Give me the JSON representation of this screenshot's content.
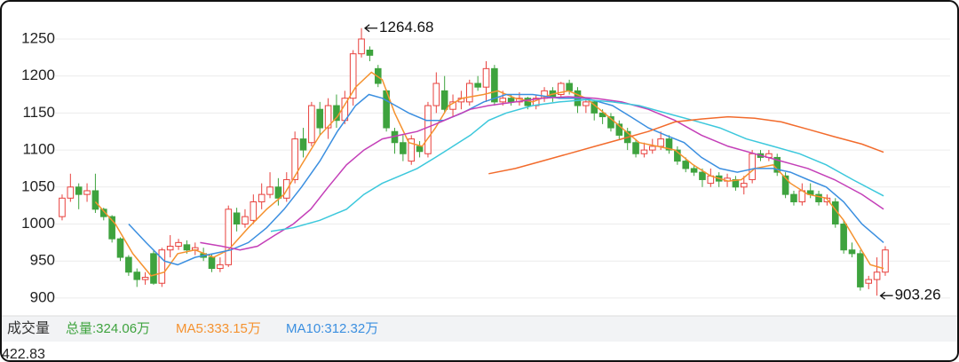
{
  "chart_data": {
    "type": "candlestick",
    "ylim": [
      880,
      1290
    ],
    "yticks": [
      900,
      950,
      1000,
      1050,
      1100,
      1150,
      1200,
      1250
    ],
    "xlim": [
      -0.85,
      106.8
    ],
    "grid": true,
    "up_color": "#e8413d",
    "down_color": "#3ea33e",
    "candles": {
      "open": [
        1010,
        1035,
        1050,
        1040,
        1045,
        1020,
        1010,
        980,
        955,
        935,
        925,
        960,
        920,
        965,
        970,
        972,
        965,
        960,
        955,
        940,
        945,
        1015,
        1000,
        1005,
        1030,
        1040,
        1050,
        1035,
        1060,
        1115,
        1110,
        1155,
        1130,
        1160,
        1140,
        1170,
        1230,
        1235,
        1210,
        1180,
        1125,
        1110,
        1085,
        1105,
        1095,
        1160,
        1180,
        1155,
        1165,
        1165,
        1190,
        1185,
        1210,
        1165,
        1170,
        1165,
        1170,
        1160,
        1170,
        1180,
        1175,
        1190,
        1180,
        1160,
        1165,
        1150,
        1145,
        1135,
        1125,
        1110,
        1095,
        1100,
        1105,
        1115,
        1100,
        1085,
        1075,
        1070,
        1055,
        1065,
        1058,
        1060,
        1050,
        1060,
        1095,
        1090,
        1090,
        1065,
        1040,
        1030,
        1045,
        1040,
        1030,
        1030,
        1000,
        965,
        960,
        920,
        925,
        935
      ],
      "high": [
        1040,
        1068,
        1055,
        1055,
        1068,
        1022,
        1012,
        982,
        958,
        940,
        935,
        965,
        968,
        985,
        980,
        978,
        975,
        968,
        960,
        955,
        1025,
        1022,
        1020,
        1040,
        1055,
        1070,
        1062,
        1070,
        1125,
        1130,
        1165,
        1165,
        1170,
        1175,
        1180,
        1235,
        1264.68,
        1240,
        1215,
        1182,
        1130,
        1120,
        1120,
        1112,
        1165,
        1205,
        1200,
        1175,
        1180,
        1195,
        1200,
        1220,
        1215,
        1180,
        1175,
        1178,
        1172,
        1175,
        1185,
        1185,
        1192,
        1195,
        1185,
        1170,
        1168,
        1155,
        1150,
        1140,
        1130,
        1115,
        1110,
        1115,
        1125,
        1120,
        1105,
        1090,
        1080,
        1075,
        1075,
        1070,
        1068,
        1065,
        1065,
        1100,
        1100,
        1100,
        1095,
        1070,
        1045,
        1055,
        1055,
        1045,
        1040,
        1035,
        1005,
        975,
        965,
        930,
        955,
        970
      ],
      "low": [
        1005,
        1030,
        1020,
        1030,
        1015,
        1005,
        975,
        950,
        930,
        915,
        918,
        918,
        915,
        955,
        965,
        960,
        958,
        950,
        935,
        935,
        942,
        990,
        995,
        1000,
        1020,
        1035,
        1025,
        1030,
        1055,
        1090,
        1105,
        1120,
        1115,
        1130,
        1135,
        1160,
        1225,
        1220,
        1185,
        1125,
        1095,
        1085,
        1080,
        1090,
        1090,
        1150,
        1150,
        1145,
        1155,
        1160,
        1180,
        1165,
        1160,
        1160,
        1160,
        1160,
        1155,
        1155,
        1165,
        1165,
        1170,
        1175,
        1150,
        1150,
        1140,
        1135,
        1125,
        1115,
        1100,
        1090,
        1090,
        1095,
        1100,
        1095,
        1080,
        1070,
        1065,
        1050,
        1050,
        1050,
        1050,
        1045,
        1040,
        1055,
        1085,
        1085,
        1065,
        1035,
        1025,
        1025,
        1035,
        1025,
        1025,
        995,
        960,
        955,
        910,
        912,
        903.26,
        930
      ],
      "close": [
        1035,
        1050,
        1040,
        1045,
        1020,
        1010,
        980,
        955,
        935,
        925,
        928,
        920,
        965,
        970,
        975,
        965,
        968,
        955,
        940,
        945,
        1020,
        1000,
        1010,
        1030,
        1040,
        1050,
        1035,
        1060,
        1115,
        1100,
        1160,
        1130,
        1160,
        1140,
        1170,
        1230,
        1250,
        1228,
        1190,
        1130,
        1110,
        1095,
        1115,
        1098,
        1160,
        1190,
        1155,
        1165,
        1170,
        1190,
        1185,
        1210,
        1165,
        1170,
        1165,
        1170,
        1160,
        1170,
        1180,
        1172,
        1190,
        1180,
        1160,
        1165,
        1150,
        1145,
        1130,
        1120,
        1110,
        1095,
        1100,
        1105,
        1115,
        1100,
        1085,
        1075,
        1070,
        1060,
        1065,
        1058,
        1062,
        1050,
        1055,
        1095,
        1090,
        1095,
        1070,
        1040,
        1030,
        1045,
        1040,
        1030,
        1035,
        1000,
        965,
        960,
        915,
        925,
        935,
        965
      ]
    },
    "ma_lines": [
      {
        "color": "#f5922f",
        "x": [
          4,
          6.4,
          8.5,
          10.7,
          12.3,
          13.9,
          16,
          18.2,
          20,
          22.4,
          24.6,
          26.7,
          28.8,
          31,
          33.1,
          35.3,
          37.2,
          38.5,
          40,
          41.7,
          43.3,
          44.9,
          46.5,
          48.1,
          50.7,
          52.4,
          54.5,
          56.6,
          58.8,
          60.9,
          63,
          65.2,
          67.3,
          69.4,
          71.6,
          73.7,
          75.9,
          78,
          80.1,
          81.7,
          83.3,
          85.5,
          87.6,
          89.7,
          91.9,
          94,
          95.6,
          97.2,
          98.8
        ],
        "values": [
          1030,
          1000,
          960,
          930,
          935,
          960,
          965,
          955,
          965,
          995,
          1020,
          1040,
          1080,
          1120,
          1145,
          1185,
          1205,
          1195,
          1150,
          1110,
          1105,
          1130,
          1160,
          1170,
          1175,
          1180,
          1170,
          1165,
          1175,
          1180,
          1170,
          1150,
          1130,
          1110,
          1105,
          1100,
          1080,
          1065,
          1058,
          1060,
          1075,
          1080,
          1055,
          1040,
          1035,
          1005,
          975,
          945,
          940
        ]
      },
      {
        "color": "#3b8fe0",
        "x": [
          8,
          10.1,
          12.3,
          13.9,
          16,
          18.2,
          20.3,
          22.4,
          24.6,
          26.7,
          28.8,
          31,
          33.1,
          35.3,
          36.9,
          38.5,
          40.1,
          41.7,
          43.8,
          45.9,
          48.1,
          50.7,
          53.4,
          56.6,
          59.8,
          63,
          66.2,
          68.4,
          70.5,
          72.6,
          74.8,
          76.9,
          79.1,
          81.2,
          83.3,
          85.5,
          87.6,
          89.7,
          91.9,
          94,
          96.2,
          98.8
        ],
        "values": [
          1000,
          975,
          950,
          945,
          955,
          960,
          965,
          975,
          995,
          1020,
          1050,
          1085,
          1125,
          1160,
          1175,
          1170,
          1160,
          1150,
          1140,
          1140,
          1150,
          1165,
          1175,
          1175,
          1170,
          1170,
          1160,
          1145,
          1130,
          1120,
          1110,
          1090,
          1075,
          1070,
          1075,
          1075,
          1070,
          1060,
          1050,
          1030,
          1000,
          975
        ]
      },
      {
        "color": "#c43fb8",
        "x": [
          16.6,
          19.2,
          21.4,
          23.5,
          25.6,
          27.8,
          29.9,
          32,
          34.2,
          36.3,
          38.5,
          40.6,
          42.7,
          44.9,
          47,
          49.1,
          51.3,
          54.5,
          57.7,
          60.9,
          64.1,
          67.3,
          70.5,
          73.7,
          76.9,
          80.1,
          83.3,
          86.5,
          89.7,
          92.9,
          96.2,
          98.8
        ],
        "values": [
          975,
          970,
          965,
          970,
          985,
          1000,
          1020,
          1050,
          1080,
          1100,
          1115,
          1120,
          1125,
          1135,
          1145,
          1155,
          1160,
          1165,
          1170,
          1172,
          1170,
          1165,
          1155,
          1140,
          1120,
          1105,
          1095,
          1085,
          1075,
          1060,
          1040,
          1020
        ]
      },
      {
        "color": "#3cc8dc",
        "x": [
          25.1,
          27.8,
          31,
          34.2,
          36.3,
          38.5,
          40.6,
          42.7,
          44.9,
          47,
          49.1,
          51.3,
          53.4,
          56.6,
          59.8,
          63,
          66.2,
          69.4,
          72.6,
          75.9,
          79.1,
          82.3,
          85.5,
          88.7,
          91.9,
          95.1,
          98.8
        ],
        "values": [
          990,
          995,
          1005,
          1020,
          1040,
          1055,
          1065,
          1075,
          1090,
          1105,
          1120,
          1140,
          1150,
          1160,
          1165,
          1168,
          1165,
          1160,
          1150,
          1140,
          1130,
          1115,
          1105,
          1095,
          1080,
          1060,
          1038
        ]
      },
      {
        "color": "#f26b2c",
        "x": [
          51.3,
          54.5,
          57.7,
          60.9,
          64.1,
          67.3,
          70.5,
          73.7,
          76.9,
          80.1,
          83.3,
          86.5,
          89.7,
          92.9,
          96.2,
          98.8
        ],
        "values": [
          1068,
          1075,
          1085,
          1095,
          1105,
          1115,
          1125,
          1138,
          1142,
          1145,
          1143,
          1138,
          1128,
          1118,
          1108,
          1097
        ]
      }
    ]
  },
  "volume_panel": {
    "title": "成交量",
    "total": "总量:324.06万",
    "ma5": "MA5:333.15万",
    "ma10": "MA10:312.32万",
    "axis_max": "422.83"
  }
}
